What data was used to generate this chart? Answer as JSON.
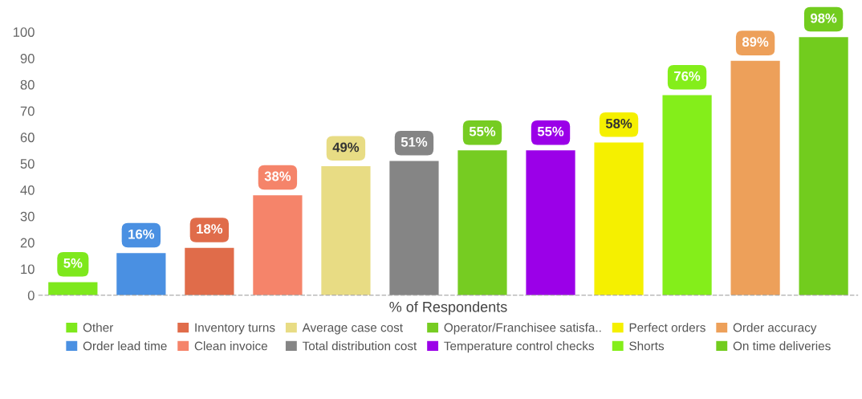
{
  "chart_data": {
    "type": "bar",
    "xlabel": "% of Respondents",
    "categories": [
      null,
      null,
      null,
      null,
      null,
      null,
      null,
      null,
      null,
      null,
      null,
      null
    ],
    "ylim": [
      0,
      100
    ],
    "yticks": [
      0,
      10,
      20,
      30,
      40,
      50,
      60,
      70,
      80,
      90,
      100
    ],
    "grid": false,
    "legend": "bottom",
    "series": [
      {
        "name": "Other",
        "color": "#7ee81c",
        "values": [
          5,
          null,
          null,
          null,
          null,
          null,
          null,
          null,
          null,
          null,
          null,
          null
        ],
        "value_labels": [
          "5%",
          null,
          null,
          null,
          null,
          null,
          null,
          null,
          null,
          null,
          null,
          null
        ]
      },
      {
        "name": "Order lead time",
        "color": "#4a90e2",
        "values": [
          null,
          16,
          null,
          null,
          null,
          null,
          null,
          null,
          null,
          null,
          null,
          null
        ],
        "value_labels": [
          null,
          "16%",
          null,
          null,
          null,
          null,
          null,
          null,
          null,
          null,
          null,
          null
        ]
      },
      {
        "name": "Inventory turns",
        "color": "#e06c4a",
        "values": [
          null,
          null,
          18,
          null,
          null,
          null,
          null,
          null,
          null,
          null,
          null,
          null
        ],
        "value_labels": [
          null,
          null,
          "18%",
          null,
          null,
          null,
          null,
          null,
          null,
          null,
          null,
          null
        ]
      },
      {
        "name": "Clean invoice",
        "color": "#f5846a",
        "values": [
          null,
          null,
          null,
          38,
          null,
          null,
          null,
          null,
          null,
          null,
          null,
          null
        ],
        "value_labels": [
          null,
          null,
          null,
          "38%",
          null,
          null,
          null,
          null,
          null,
          null,
          null,
          null
        ]
      },
      {
        "name": "Average case cost",
        "color": "#e8dc84",
        "values": [
          null,
          null,
          null,
          null,
          49,
          null,
          null,
          null,
          null,
          null,
          null,
          null
        ],
        "value_labels": [
          null,
          null,
          null,
          null,
          "49%",
          null,
          null,
          null,
          null,
          null,
          null,
          null
        ]
      },
      {
        "name": "Total distribution cost",
        "color": "#858585",
        "values": [
          null,
          null,
          null,
          null,
          null,
          51,
          null,
          null,
          null,
          null,
          null,
          null
        ],
        "value_labels": [
          null,
          null,
          null,
          null,
          null,
          "51%",
          null,
          null,
          null,
          null,
          null,
          null
        ]
      },
      {
        "name": "Operator/Franchisee satisfa..",
        "color": "#76cc22",
        "values": [
          null,
          null,
          null,
          null,
          null,
          null,
          55,
          null,
          null,
          null,
          null,
          null
        ],
        "value_labels": [
          null,
          null,
          null,
          null,
          null,
          null,
          "55%",
          null,
          null,
          null,
          null,
          null
        ]
      },
      {
        "name": "Temperature control checks",
        "color": "#9b00e8",
        "values": [
          null,
          null,
          null,
          null,
          null,
          null,
          null,
          55,
          null,
          null,
          null,
          null
        ],
        "value_labels": [
          null,
          null,
          null,
          null,
          null,
          null,
          null,
          "55%",
          null,
          null,
          null,
          null
        ]
      },
      {
        "name": "Perfect orders",
        "color": "#f5f000",
        "values": [
          null,
          null,
          null,
          null,
          null,
          null,
          null,
          null,
          58,
          null,
          null,
          null
        ],
        "value_labels": [
          null,
          null,
          null,
          null,
          null,
          null,
          null,
          null,
          "58%",
          null,
          null,
          null
        ]
      },
      {
        "name": "Shorts",
        "color": "#84ee1a",
        "values": [
          null,
          null,
          null,
          null,
          null,
          null,
          null,
          null,
          null,
          76,
          null,
          null
        ],
        "value_labels": [
          null,
          null,
          null,
          null,
          null,
          null,
          null,
          null,
          null,
          "76%",
          null,
          null
        ]
      },
      {
        "name": "Order accuracy",
        "color": "#eda05a",
        "values": [
          null,
          null,
          null,
          null,
          null,
          null,
          null,
          null,
          null,
          null,
          89,
          null
        ],
        "value_labels": [
          null,
          null,
          null,
          null,
          null,
          null,
          null,
          null,
          null,
          null,
          "89%",
          null
        ]
      },
      {
        "name": "On time deliveries",
        "color": "#72cc1e",
        "values": [
          null,
          null,
          null,
          null,
          null,
          null,
          null,
          null,
          null,
          null,
          null,
          98
        ],
        "value_labels": [
          null,
          null,
          null,
          null,
          null,
          null,
          null,
          null,
          null,
          null,
          null,
          "98%"
        ]
      }
    ]
  }
}
